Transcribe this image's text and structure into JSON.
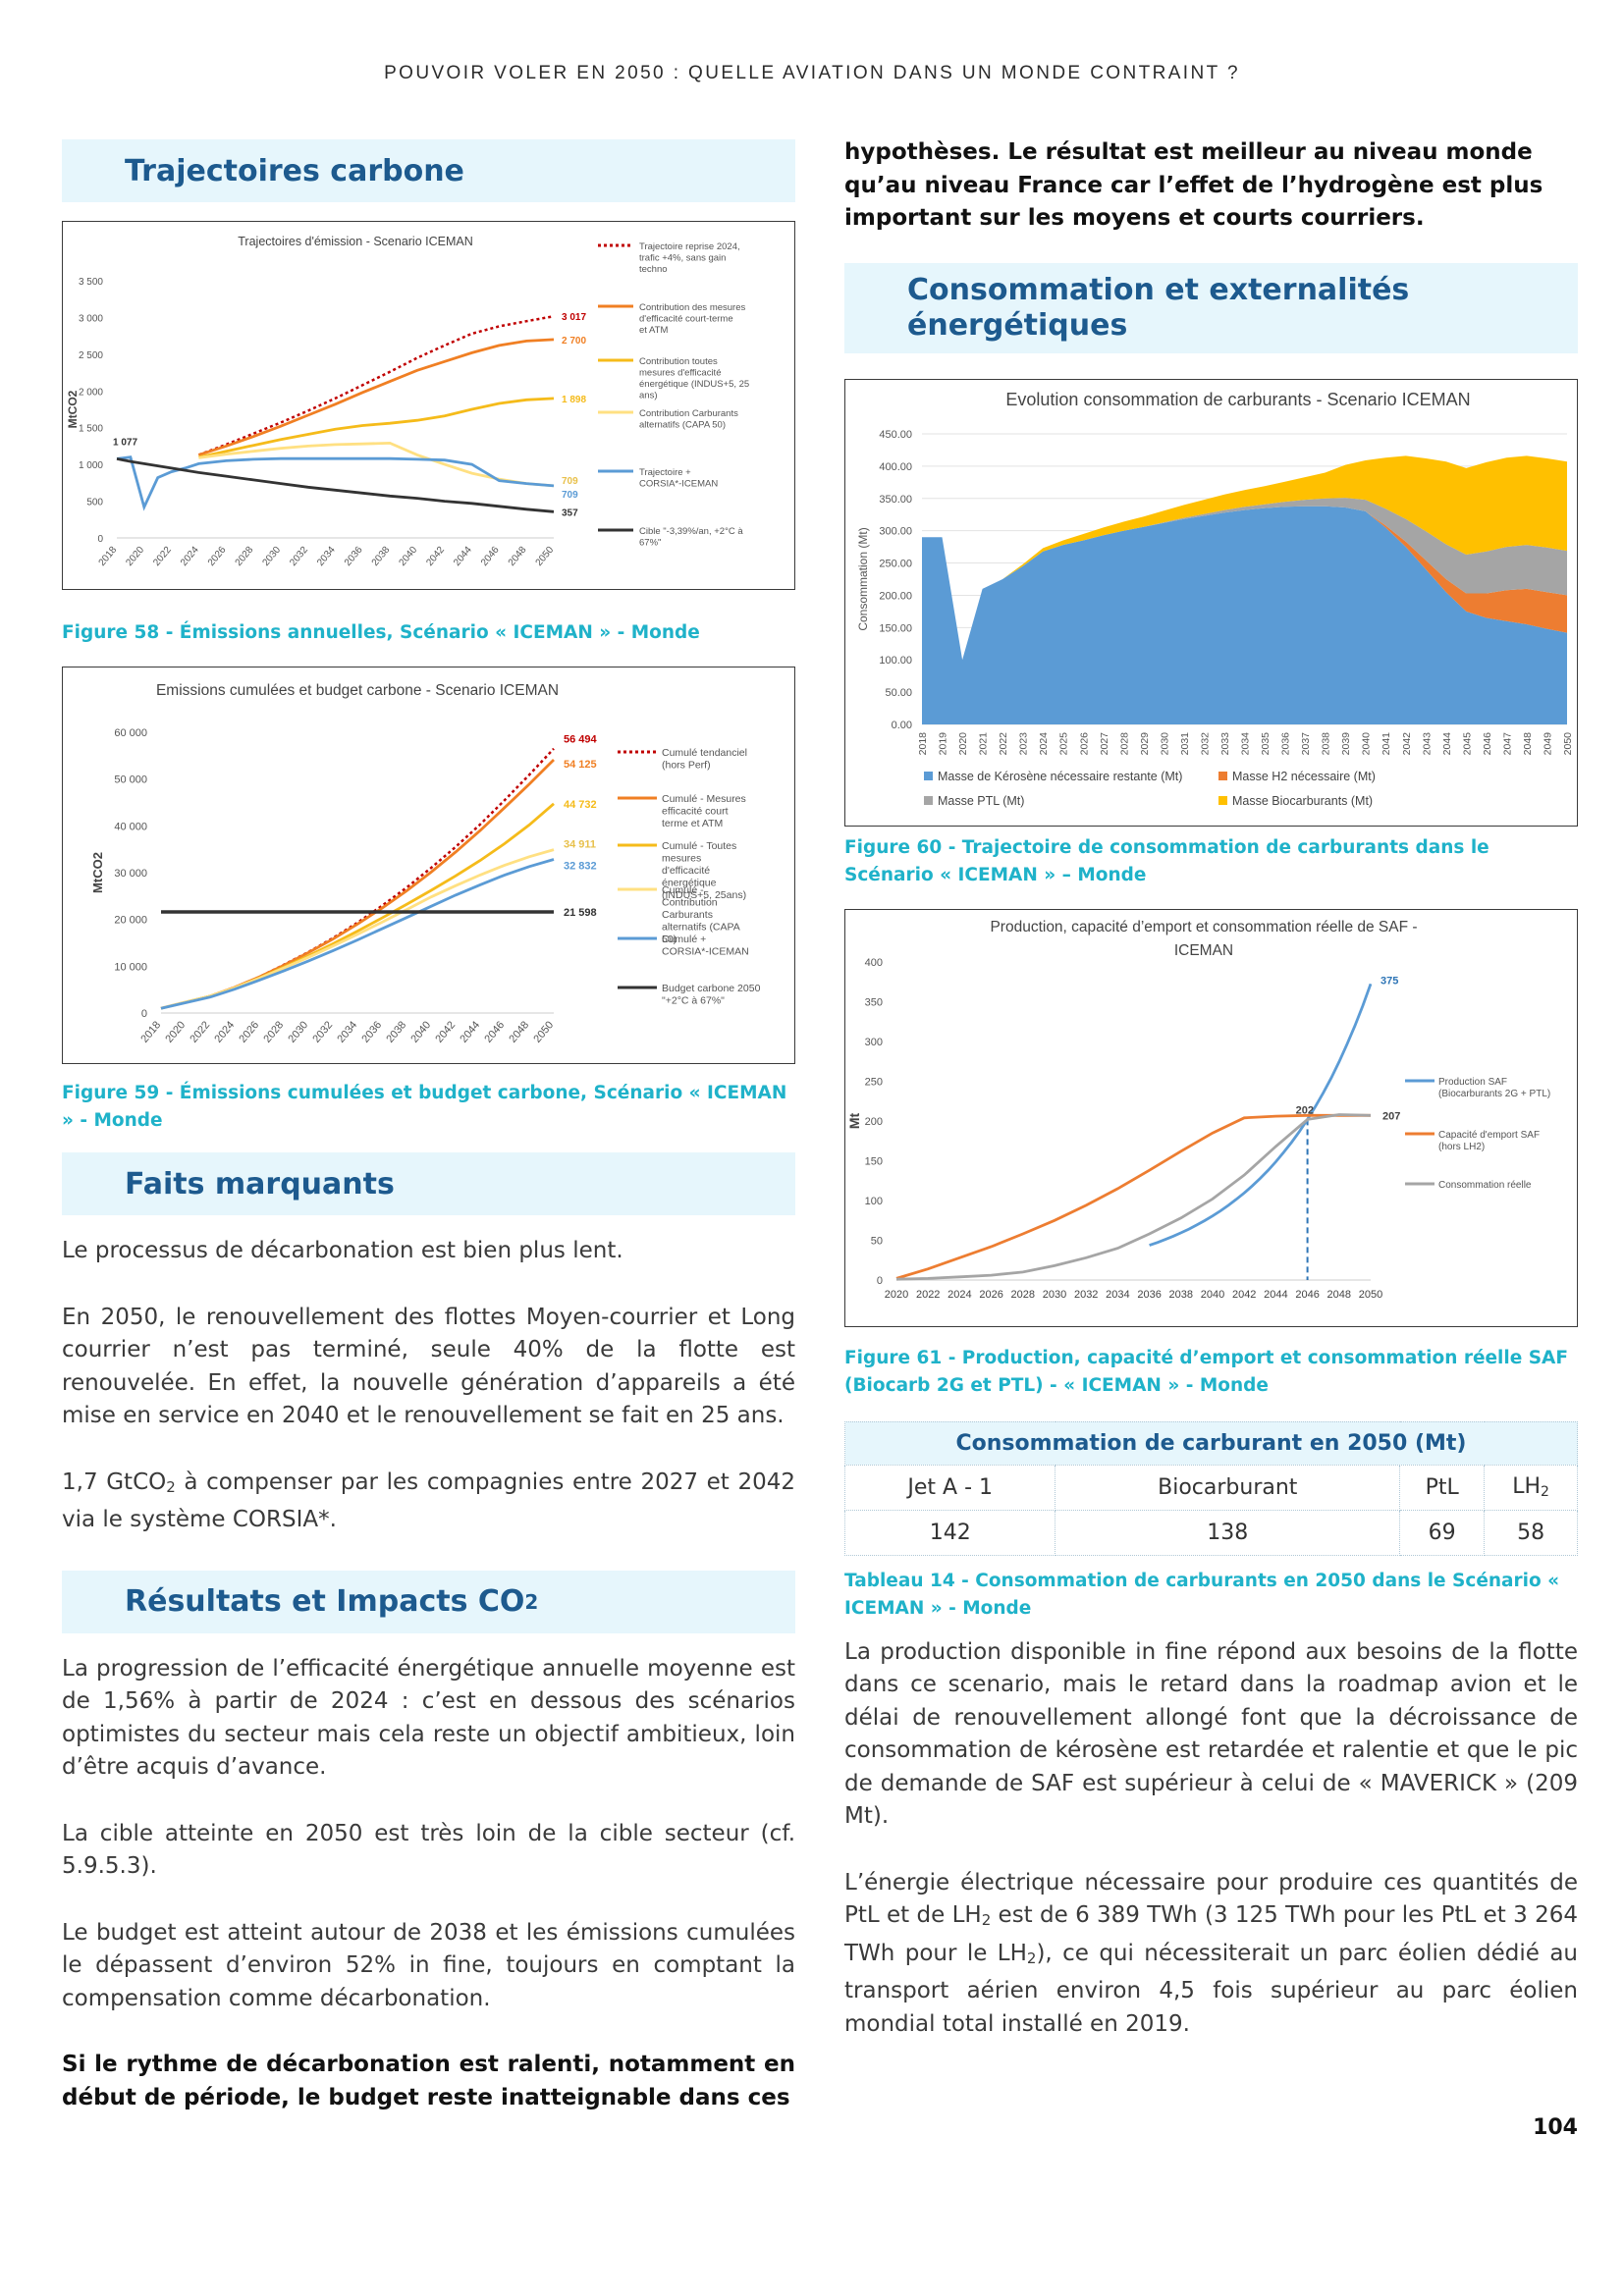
{
  "header": {
    "running_title": "POUVOIR VOLER EN 2050 : QUELLE AVIATION DANS UN MONDE CONTRAINT ?"
  },
  "page_number": "104",
  "left": {
    "section1_title": "Trajectoires carbone",
    "fig58_caption": "Figure 58 - Émissions annuelles, Scénario « ICEMAN » - Monde",
    "fig59_caption": "Figure 59 - Émissions cumulées et budget carbone, Scénario « ICEMAN » - Monde",
    "section2_title": "Faits marquants",
    "p1": "Le processus de décarbonation est bien plus lent.",
    "p2": "En 2050, le renouvellement des flottes Moyen-courrier et Long courrier n’est pas terminé, seule 40% de la flotte est renouvelée. En effet, la nouvelle génération d’appareils a été mise en service en 2040 et le renouvellement se fait en 25 ans.",
    "p3_a": "1,7 GtCO",
    "p3_sub": "2",
    "p3_b": " à compenser par les compagnies entre 2027 et 2042 via le système CORSIA*.",
    "section3_title": "Résultats et Impacts CO",
    "section3_sub": "2",
    "p4": "La progression de l’efficacité énergétique annuelle moyenne est de 1,56% à partir de 2024 : c’est en dessous des scénarios optimistes du secteur mais cela reste un objectif ambitieux, loin d’être acquis d’avance.",
    "p5": "La cible atteinte en 2050 est très loin de la cible secteur (cf. 5.9.5.3).",
    "p6": "Le budget est atteint autour de 2038 et les émissions cumulées le dépassent d’environ 52% in fine, toujours en comptant la compensation comme décarbonation.",
    "p7": "Si le rythme de décarbonation est ralenti, notamment en début de période, le budget reste inatteignable dans ces"
  },
  "right": {
    "p0": "hypothèses. Le résultat est meilleur au niveau monde qu’au niveau France car l’effet de l’hydrogène est plus important sur les moyens et courts courriers.",
    "section4_title_line1": "Consommation et externalités",
    "section4_title_line2": "énergétiques",
    "fig60_caption": "Figure 60 - Trajectoire de consommation de carburants dans le Scénario « ICEMAN » – Monde",
    "fig61_caption": "Figure 61 - Production, capacité d’emport et consommation réelle SAF (Biocarb 2G et PTL) - « ICEMAN » - Monde",
    "table_title": "Consommation de carburant en 2050 (Mt)",
    "table_headers": [
      "Jet A - 1",
      "Biocarburant",
      "PtL",
      "LH"
    ],
    "table_header_sub": "2",
    "table_values": [
      "142",
      "138",
      "69",
      "58"
    ],
    "tab14_caption": "Tableau 14 - Consommation de carburants en 2050 dans le Scénario « ICEMAN » - Monde",
    "p8": "La production disponible in fine répond aux besoins de la flotte dans ce scenario, mais le retard dans la roadmap avion et le délai de renouvellement allongé font que la décroissance de consommation de kérosène est retardée et ralentie et que le pic de demande de SAF est supérieur à celui de « MAVERICK » (209 Mt).",
    "p9_a": "L’énergie électrique nécessaire pour produire ces quantités de PtL et de LH",
    "p9_sub1": "2",
    "p9_b": " est de 6 389 TWh (3 125 TWh pour les PtL et 3 264 TWh pour le LH",
    "p9_sub2": "2",
    "p9_c": "), ce qui nécessiterait un parc éolien dédié au transport aérien environ 4,5 fois supérieur au parc éolien mondial total installé en 2019."
  },
  "chart_data": [
    {
      "id": "fig58",
      "type": "line",
      "title": "Trajectoires d'émission - Scenario ICEMAN",
      "ylabel": "MtCO2",
      "ylim": [
        0,
        3500
      ],
      "yticks": [
        "0",
        "500",
        "1 000",
        "1 500",
        "2 000",
        "2 500",
        "3 000",
        "3 500"
      ],
      "x": [
        2018,
        2019,
        2020,
        2021,
        2022,
        2023,
        2024,
        2026,
        2028,
        2030,
        2032,
        2034,
        2036,
        2038,
        2040,
        2042,
        2044,
        2046,
        2048,
        2050
      ],
      "xticks": [
        "2018",
        "2020",
        "2022",
        "2024",
        "2026",
        "2028",
        "2030",
        "2032",
        "2034",
        "2036",
        "2038",
        "2040",
        "2042",
        "2044",
        "2046",
        "2048",
        "2050"
      ],
      "start_label": "1 077",
      "series": [
        {
          "name": "Trajectoire reprise 2024, trafic +4%, sans gain techno",
          "color": "#c00000",
          "dash": true,
          "end_label": "3 017",
          "values": [
            null,
            null,
            null,
            null,
            null,
            null,
            1130,
            1270,
            1420,
            1570,
            1730,
            1900,
            2080,
            2260,
            2450,
            2620,
            2780,
            2880,
            2950,
            3017
          ]
        },
        {
          "name": "Contribution des mesures d'efficacité court-terme et ATM",
          "color": "#f07f23",
          "end_label": "2 700",
          "values": [
            null,
            null,
            null,
            null,
            null,
            null,
            1130,
            1250,
            1380,
            1520,
            1670,
            1820,
            1980,
            2130,
            2280,
            2400,
            2520,
            2620,
            2680,
            2700
          ]
        },
        {
          "name": "Contribution toutes mesures d'efficacité énergétique (INDUS+5, 25 ans)",
          "color": "#f5bb1a",
          "end_label": "1 898",
          "values": [
            null,
            null,
            null,
            null,
            null,
            null,
            1100,
            1180,
            1260,
            1340,
            1410,
            1480,
            1530,
            1560,
            1600,
            1660,
            1750,
            1830,
            1880,
            1898
          ]
        },
        {
          "name": "Contribution Carburants alternatifs (CAPA 50)",
          "color": "#ffe082",
          "end_label": "709",
          "values": [
            null,
            null,
            null,
            null,
            null,
            null,
            1090,
            1140,
            1180,
            1220,
            1250,
            1270,
            1280,
            1290,
            1130,
            1000,
            880,
            800,
            740,
            709
          ]
        },
        {
          "name": "Trajectoire + CORSIA*-ICEMAN",
          "color": "#5b9bd5",
          "end_label": "709",
          "values": [
            1077,
            1100,
            420,
            820,
            900,
            950,
            1010,
            1050,
            1070,
            1080,
            1080,
            1080,
            1080,
            1080,
            1070,
            1060,
            1000,
            780,
            740,
            709
          ]
        },
        {
          "name": "Cible \"-3,39%/an, +2°C à 67%\"",
          "color": "#333333",
          "end_label": "357",
          "values": [
            1077,
            1040,
            1010,
            980,
            950,
            920,
            890,
            840,
            790,
            740,
            690,
            650,
            610,
            570,
            540,
            500,
            470,
            430,
            390,
            357
          ]
        }
      ]
    },
    {
      "id": "fig59",
      "type": "line",
      "title": "Emissions cumulées et budget carbone - Scenario ICEMAN",
      "ylabel": "MtCO2",
      "ylim": [
        0,
        60000
      ],
      "yticks": [
        "0",
        "10 000",
        "20 000",
        "30 000",
        "40 000",
        "50 000",
        "60 000"
      ],
      "xticks": [
        "2018",
        "2020",
        "2022",
        "2024",
        "2026",
        "2028",
        "2030",
        "2032",
        "2034",
        "2036",
        "2038",
        "2040",
        "2042",
        "2044",
        "2046",
        "2048",
        "2050"
      ],
      "x": [
        2018,
        2020,
        2022,
        2024,
        2026,
        2028,
        2030,
        2032,
        2034,
        2036,
        2038,
        2040,
        2042,
        2044,
        2046,
        2048,
        2050
      ],
      "series": [
        {
          "name": "Cumulé tendanciel (hors Perf)",
          "color": "#c00000",
          "dash": true,
          "end_label": "56 494",
          "values": [
            1000,
            2300,
            3600,
            5500,
            7700,
            10300,
            13000,
            16000,
            19300,
            22900,
            26800,
            31000,
            35500,
            40300,
            45500,
            50900,
            56494
          ]
        },
        {
          "name": "Cumulé - Mesures efficacité court terme et ATM",
          "color": "#f07f23",
          "end_label": "54 125",
          "values": [
            1000,
            2300,
            3600,
            5500,
            7700,
            10200,
            12900,
            15800,
            19000,
            22400,
            26100,
            30100,
            34400,
            39000,
            43900,
            48900,
            54125
          ]
        },
        {
          "name": "Cumulé - Toutes mesures d'efficacité énergétique (INDUS+5, 25ans)",
          "color": "#f5bb1a",
          "end_label": "44 732",
          "values": [
            1000,
            2300,
            3600,
            5400,
            7500,
            9800,
            12200,
            14800,
            17500,
            20300,
            23200,
            26200,
            29300,
            32600,
            36200,
            40200,
            44732
          ]
        },
        {
          "name": "Cumulé - Contribution Carburants alternatifs (CAPA 50)",
          "color": "#ffe082",
          "end_label": "34 911",
          "values": [
            1000,
            2300,
            3600,
            5400,
            7400,
            9600,
            11900,
            14300,
            16800,
            19400,
            22100,
            24800,
            27200,
            29500,
            31600,
            33400,
            34911
          ]
        },
        {
          "name": "Cumulé + CORSIA*-ICEMAN",
          "color": "#5b9bd5",
          "end_label": "32 832",
          "values": [
            1000,
            2200,
            3400,
            5100,
            7000,
            9000,
            11100,
            13300,
            15600,
            18000,
            20400,
            22800,
            25200,
            27400,
            29500,
            31300,
            32832
          ]
        },
        {
          "name": "Budget carbone 2050 \"+2°C à 67%\"",
          "color": "#333333",
          "end_label": "21 598",
          "values": [
            21598,
            21598,
            21598,
            21598,
            21598,
            21598,
            21598,
            21598,
            21598,
            21598,
            21598,
            21598,
            21598,
            21598,
            21598,
            21598,
            21598
          ]
        }
      ]
    },
    {
      "id": "fig60",
      "type": "area",
      "title": "Evolution consommation de carburants - Scenario ICEMAN",
      "ylabel": "Consommation (Mt)",
      "ylim": [
        0,
        450
      ],
      "yticks": [
        "0.00",
        "50.00",
        "100.00",
        "150.00",
        "200.00",
        "250.00",
        "300.00",
        "350.00",
        "400.00",
        "450.00"
      ],
      "categories": [
        "2018",
        "2019",
        "2020",
        "2021",
        "2022",
        "2023",
        "2024",
        "2025",
        "2026",
        "2027",
        "2028",
        "2029",
        "2030",
        "2031",
        "2032",
        "2033",
        "2034",
        "2035",
        "2036",
        "2037",
        "2038",
        "2039",
        "2040",
        "2041",
        "2042",
        "2043",
        "2044",
        "2045",
        "2046",
        "2047",
        "2048",
        "2049",
        "2050"
      ],
      "series": [
        {
          "name": "Masse de Kérosène nécessaire restante (Mt)",
          "color": "#5b9bd5",
          "values": [
            290,
            290,
            100,
            210,
            225,
            245,
            268,
            278,
            285,
            293,
            300,
            306,
            312,
            318,
            323,
            328,
            332,
            335,
            337,
            338,
            338,
            336,
            330,
            305,
            275,
            240,
            205,
            175,
            165,
            160,
            155,
            148,
            142
          ]
        },
        {
          "name": "Masse H2 nécessaire (Mt)",
          "color": "#ed7d31",
          "values": [
            0,
            0,
            0,
            0,
            0,
            0,
            0,
            0,
            0,
            0,
            0,
            0,
            0,
            0,
            0,
            0,
            0,
            0,
            0,
            0,
            0,
            0,
            0,
            3,
            8,
            14,
            20,
            28,
            38,
            48,
            55,
            57,
            58
          ]
        },
        {
          "name": "Masse PTL (Mt)",
          "color": "#a5a5a5",
          "values": [
            0,
            0,
            0,
            0,
            0,
            0,
            0,
            0,
            0,
            0,
            0,
            0,
            1,
            2,
            3,
            4,
            5,
            6,
            8,
            10,
            12,
            15,
            18,
            26,
            35,
            45,
            54,
            60,
            65,
            67,
            68,
            69,
            69
          ]
        },
        {
          "name": "Masse Biocarburants (Mt)",
          "color": "#ffc000",
          "values": [
            0,
            0,
            0,
            0,
            0,
            3,
            5,
            7,
            10,
            12,
            14,
            16,
            18,
            20,
            22,
            24,
            26,
            28,
            31,
            35,
            40,
            51,
            61,
            79,
            98,
            113,
            128,
            134,
            138,
            138,
            138,
            138,
            138
          ]
        }
      ]
    },
    {
      "id": "fig61",
      "type": "line",
      "title": "Production, capacité d'emport et consommation réelle de SAF - ICEMAN",
      "ylabel": "Mt",
      "ylim": [
        0,
        400
      ],
      "yticks": [
        "0",
        "50",
        "100",
        "150",
        "200",
        "250",
        "300",
        "350",
        "400"
      ],
      "x": [
        2020,
        2022,
        2024,
        2026,
        2028,
        2030,
        2032,
        2034,
        2036,
        2038,
        2040,
        2042,
        2044,
        2046,
        2048,
        2050
      ],
      "xticks": [
        "2020",
        "2022",
        "2024",
        "2026",
        "2028",
        "2030",
        "2032",
        "2034",
        "2036",
        "2038",
        "2040",
        "2042",
        "2044",
        "2046",
        "2048",
        "2050"
      ],
      "annotation_x": 2046,
      "annotations": [
        "375",
        "202",
        "207"
      ],
      "series": [
        {
          "name": "Production SAF (Biocarburants 2G + PTL)",
          "color": "#5b9bd5",
          "end_label": "375",
          "values": [
            null,
            null,
            null,
            null,
            null,
            null,
            null,
            null,
            null,
            null,
            null,
            null,
            null,
            202,
            280,
            375
          ]
        },
        {
          "name": "Capacité d'emport SAF (hors LH2)",
          "color": "#ed7d31",
          "values": [
            2,
            14,
            28,
            42,
            58,
            75,
            94,
            115,
            138,
            162,
            185,
            204,
            206,
            207,
            207,
            207
          ]
        },
        {
          "name": "Consommation réelle",
          "color": "#a5a5a5",
          "end_label": "207",
          "values": [
            1,
            2,
            4,
            6,
            10,
            18,
            28,
            40,
            58,
            78,
            102,
            132,
            168,
            202,
            208,
            207
          ]
        }
      ]
    }
  ]
}
